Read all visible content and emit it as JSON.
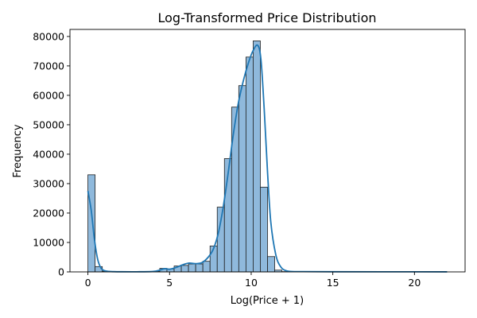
{
  "chart_data": {
    "type": "bar",
    "title": "Log-Transformed Price Distribution",
    "xlabel": "Log(Price + 1)",
    "ylabel": "Frequency",
    "xlim": [
      -1.1,
      23.1
    ],
    "ylim": [
      0,
      82400
    ],
    "xticks": [
      0,
      5,
      10,
      15,
      20
    ],
    "yticks": [
      0,
      10000,
      20000,
      30000,
      40000,
      50000,
      60000,
      70000,
      80000
    ],
    "bin_width": 0.44,
    "bins": [
      {
        "x": 0.22,
        "count": 33000
      },
      {
        "x": 0.66,
        "count": 1800
      },
      {
        "x": 1.1,
        "count": 250
      },
      {
        "x": 1.54,
        "count": 80
      },
      {
        "x": 1.98,
        "count": 50
      },
      {
        "x": 2.42,
        "count": 40
      },
      {
        "x": 2.86,
        "count": 40
      },
      {
        "x": 3.3,
        "count": 40
      },
      {
        "x": 3.74,
        "count": 80
      },
      {
        "x": 4.18,
        "count": 200
      },
      {
        "x": 4.62,
        "count": 1200
      },
      {
        "x": 5.06,
        "count": 1000
      },
      {
        "x": 5.5,
        "count": 2000
      },
      {
        "x": 5.94,
        "count": 2200
      },
      {
        "x": 6.38,
        "count": 2700
      },
      {
        "x": 6.82,
        "count": 2700
      },
      {
        "x": 7.26,
        "count": 3600
      },
      {
        "x": 7.7,
        "count": 8800
      },
      {
        "x": 8.14,
        "count": 22000
      },
      {
        "x": 8.58,
        "count": 38500
      },
      {
        "x": 9.02,
        "count": 56000
      },
      {
        "x": 9.46,
        "count": 63300
      },
      {
        "x": 9.9,
        "count": 73000
      },
      {
        "x": 10.34,
        "count": 78500
      },
      {
        "x": 10.78,
        "count": 28800
      },
      {
        "x": 11.22,
        "count": 5200
      },
      {
        "x": 11.66,
        "count": 600
      },
      {
        "x": 12.1,
        "count": 100
      },
      {
        "x": 12.54,
        "count": 50
      },
      {
        "x": 12.98,
        "count": 30
      }
    ],
    "kde": {
      "x": [
        0,
        0.2,
        0.4,
        0.6,
        0.8,
        1.0,
        1.3,
        1.6,
        2.0,
        3.0,
        4.0,
        4.4,
        4.7,
        5.0,
        5.4,
        5.8,
        6.2,
        6.6,
        7.0,
        7.4,
        7.7,
        8.0,
        8.3,
        8.6,
        8.9,
        9.2,
        9.5,
        9.8,
        10.1,
        10.4,
        10.6,
        10.8,
        11.0,
        11.2,
        11.5,
        11.8,
        12.2,
        13,
        15,
        18,
        22
      ],
      "y": [
        27500,
        21000,
        11000,
        4200,
        1300,
        450,
        150,
        80,
        50,
        40,
        150,
        600,
        1100,
        900,
        1500,
        2400,
        3000,
        2800,
        3200,
        5200,
        8000,
        13500,
        22500,
        34000,
        46500,
        57000,
        64500,
        70500,
        75000,
        77000,
        72000,
        55000,
        34000,
        17000,
        6000,
        1800,
        300,
        100,
        50,
        30,
        20
      ]
    },
    "bar_color": "#8fb9dc",
    "bar_edge_color": "#1f1f1f",
    "line_color": "#1f77b4",
    "grid": false,
    "legend": "none"
  }
}
